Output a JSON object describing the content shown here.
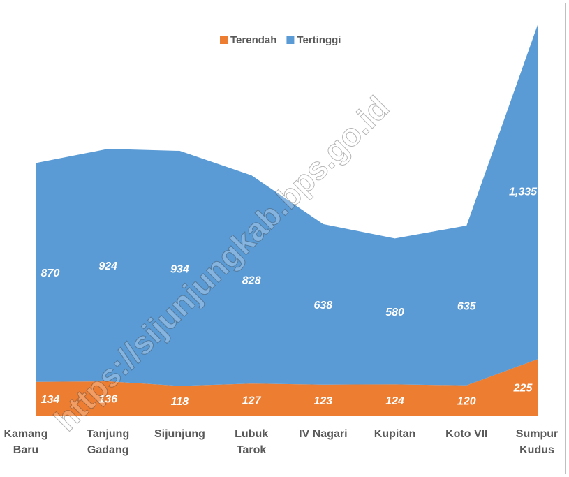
{
  "chart_data": {
    "type": "stacked-area",
    "categories": [
      [
        "Kamang",
        "Baru"
      ],
      [
        "Tanjung",
        "Gadang"
      ],
      [
        "Sijunjung"
      ],
      [
        "Lubuk",
        "Tarok"
      ],
      [
        "IV Nagari"
      ],
      [
        "Kupitan"
      ],
      [
        "Koto VII"
      ],
      [
        "Sumpur",
        "Kudus"
      ]
    ],
    "series": [
      {
        "name": "Terendah",
        "color": "#ed7d31",
        "values": [
          134,
          136,
          118,
          127,
          123,
          124,
          120,
          225
        ],
        "value_labels": [
          "134",
          "136",
          "118",
          "127",
          "123",
          "124",
          "120",
          "225"
        ]
      },
      {
        "name": "Tertinggi",
        "color": "#5b9bd5",
        "values": [
          870,
          924,
          934,
          828,
          638,
          580,
          635,
          1335
        ],
        "value_labels": [
          "870",
          "924",
          "934",
          "828",
          "638",
          "580",
          "635",
          "1,335"
        ]
      }
    ],
    "legend": "top",
    "watermark": "https://sijunjungkab.bps.go.id"
  }
}
